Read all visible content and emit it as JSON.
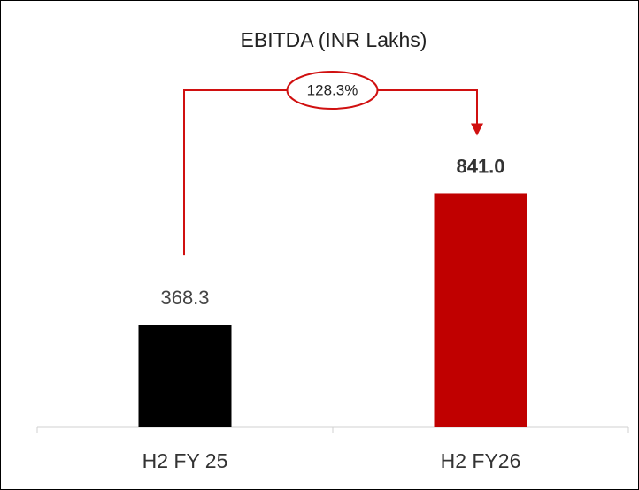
{
  "chart_data": {
    "type": "bar",
    "title": "EBITDA (INR Lakhs)",
    "categories": [
      "H2 FY 25",
      "H2 FY26"
    ],
    "values": [
      368.3,
      841.0
    ],
    "value_labels": [
      "368.3",
      "841.0"
    ],
    "colors": [
      "#000000",
      "#c00000"
    ],
    "ylim": [
      0,
      1100
    ],
    "annotation": "128.3%"
  }
}
